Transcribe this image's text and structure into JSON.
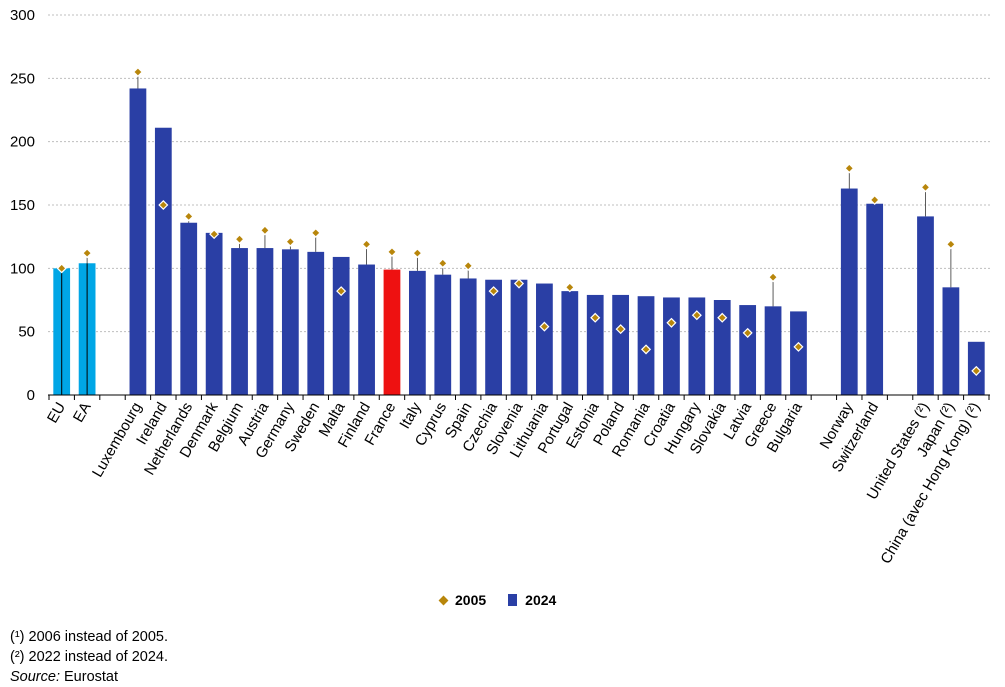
{
  "chart_data": {
    "type": "bar",
    "categories": [
      "EU",
      "EA",
      "Luxembourg",
      "Ireland",
      "Netherlands",
      "Denmark",
      "Belgium",
      "Austria",
      "Germany",
      "Sweden",
      "Malta",
      "Finland",
      "France",
      "Italy",
      "Cyprus",
      "Spain",
      "Czechia",
      "Slovenia",
      "Lithuania",
      "Portugal",
      "Estonia",
      "Poland",
      "Romania",
      "Croatia",
      "Hungary",
      "Slovakia",
      "Latvia",
      "Greece",
      "Bulgaria",
      "Norway",
      "Switzerland",
      "United States (²)",
      "Japan (²)",
      "China (avec Hong Kong) (²)"
    ],
    "groups": [
      0,
      0,
      1,
      1,
      1,
      1,
      1,
      1,
      1,
      1,
      1,
      1,
      1,
      1,
      1,
      1,
      1,
      1,
      1,
      1,
      1,
      1,
      1,
      1,
      1,
      1,
      1,
      1,
      1,
      2,
      2,
      3,
      3,
      3
    ],
    "series": [
      {
        "name": "2024",
        "type": "bar",
        "values": [
          100,
          104,
          242,
          211,
          136,
          128,
          116,
          116,
          115,
          113,
          109,
          103,
          99,
          98,
          95,
          92,
          91,
          91,
          88,
          82,
          79,
          79,
          78,
          77,
          77,
          75,
          71,
          70,
          66,
          163,
          151,
          141,
          85,
          42
        ]
      },
      {
        "name": "2005",
        "type": "marker",
        "values": [
          100,
          112,
          255,
          150,
          141,
          127,
          123,
          130,
          121,
          128,
          82,
          119,
          113,
          112,
          104,
          102,
          82,
          88,
          54,
          85,
          61,
          52,
          36,
          57,
          63,
          61,
          49,
          93,
          38,
          179,
          154,
          164,
          119,
          19
        ]
      }
    ],
    "ylim": [
      0,
      300
    ],
    "yticks": [
      0,
      50,
      100,
      150,
      200,
      250,
      300
    ],
    "grid": true,
    "legend_position": "bottom",
    "colors": {
      "eu_ea_bar": "#00A6E6",
      "country_bar": "#2A3FA5",
      "highlight_bar": "#EE1111",
      "marker": "#B8860B",
      "grid": "#BFBFBF",
      "axis": "#000000"
    },
    "highlight_category": "France",
    "blue_categories": [
      "EU",
      "EA"
    ]
  },
  "legend": {
    "item_2005": "2005",
    "item_2024": "2024"
  },
  "notes": {
    "note1": "(¹) 2006 instead of 2005.",
    "note2": "(²) 2022 instead of 2024.",
    "source_label": "Source:",
    "source_value": " Eurostat"
  }
}
